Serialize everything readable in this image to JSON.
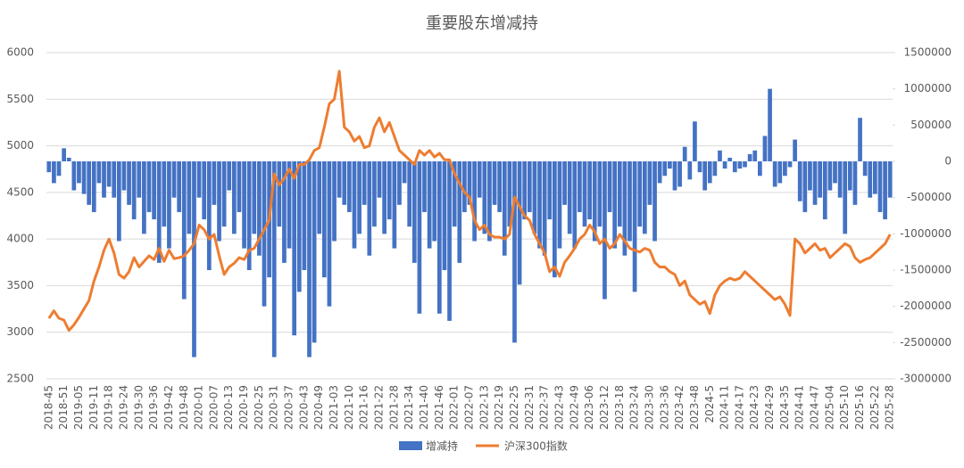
{
  "chart_data": {
    "type": "bar",
    "title": "重要股东增减持",
    "categories": [
      "2018-45",
      null,
      null,
      "2018-51",
      null,
      null,
      "2019-05",
      null,
      null,
      "2019-11",
      null,
      null,
      "2019-18",
      null,
      null,
      "2019-24",
      null,
      null,
      "2019-30",
      null,
      null,
      "2019-36",
      null,
      null,
      "2019-42",
      null,
      null,
      "2019-48",
      null,
      null,
      "2020-01",
      null,
      null,
      "2020-07",
      null,
      null,
      "2020-13",
      null,
      null,
      "2020-19",
      null,
      null,
      "2020-25",
      null,
      null,
      "2020-31",
      null,
      null,
      "2020-37",
      null,
      null,
      "2020-43",
      null,
      null,
      "2020-49",
      null,
      null,
      "2021-03",
      null,
      null,
      "2021-10",
      null,
      null,
      "2021-16",
      null,
      null,
      "2021-22",
      null,
      null,
      "2021-28",
      null,
      null,
      "2021-34",
      null,
      null,
      "2021-40",
      null,
      null,
      "2021-46",
      null,
      null,
      "2022-01",
      null,
      null,
      "2022-07",
      null,
      null,
      "2022-13",
      null,
      null,
      "2022-19",
      null,
      null,
      "2022-25",
      null,
      null,
      "2022-31",
      null,
      null,
      "2022-37",
      null,
      null,
      "2022-43",
      null,
      null,
      "2022-49",
      null,
      null,
      "2023-06",
      null,
      null,
      "2023-12",
      null,
      null,
      "2023-18",
      null,
      null,
      "2023-24",
      null,
      null,
      "2023-30",
      null,
      null,
      "2023-36",
      null,
      null,
      "2023-42",
      null,
      null,
      "2023-48",
      null,
      null,
      "2024-5",
      null,
      null,
      "2024-11",
      null,
      null,
      "2024-17",
      null,
      null,
      "2024-23",
      null,
      null,
      "2024-29",
      null,
      null,
      "2024-35",
      null,
      null,
      "2024-41",
      null,
      null,
      "2024-47",
      null,
      null,
      "2025-04",
      null,
      null,
      "2025-10",
      null,
      null,
      "2025-16",
      null,
      null,
      "2025-22",
      null,
      null,
      "2025-28"
    ],
    "series": [
      {
        "name": "增减持",
        "type": "bar",
        "axis": "y2",
        "color": "#4472c4",
        "values": [
          -150000,
          -300000,
          -200000,
          180000,
          50000,
          -400000,
          -300000,
          -450000,
          -600000,
          -700000,
          -300000,
          -500000,
          -350000,
          -500000,
          -1100000,
          -400000,
          -600000,
          -800000,
          -500000,
          -1000000,
          -700000,
          -800000,
          -1400000,
          -900000,
          -1200000,
          -500000,
          -700000,
          -1900000,
          -1000000,
          -2700000,
          -500000,
          -800000,
          -1500000,
          -600000,
          -1100000,
          -900000,
          -400000,
          -1000000,
          -700000,
          -1200000,
          -1500000,
          -1000000,
          -1300000,
          -2000000,
          -1600000,
          -2700000,
          -900000,
          -1400000,
          -1200000,
          -2400000,
          -1800000,
          -1500000,
          -2700000,
          -2500000,
          -1000000,
          -1600000,
          -2000000,
          -1100000,
          -500000,
          -600000,
          -700000,
          -1200000,
          -1000000,
          -600000,
          -1300000,
          -900000,
          -500000,
          -1000000,
          -800000,
          -1200000,
          -600000,
          -300000,
          -900000,
          -1400000,
          -2100000,
          -700000,
          -1200000,
          -1100000,
          -2100000,
          -1500000,
          -2200000,
          -900000,
          -1400000,
          -700000,
          -600000,
          -1100000,
          -500000,
          -1000000,
          -1100000,
          -600000,
          -700000,
          -1300000,
          -900000,
          -2500000,
          -1700000,
          -800000,
          -700000,
          -1000000,
          -1200000,
          -1300000,
          -800000,
          -1600000,
          -1200000,
          -600000,
          -1000000,
          -1200000,
          -700000,
          -900000,
          -800000,
          -1100000,
          -900000,
          -1900000,
          -700000,
          -1200000,
          -900000,
          -1300000,
          -1100000,
          -1800000,
          -900000,
          -1000000,
          -600000,
          -1100000,
          -300000,
          -200000,
          -100000,
          -400000,
          -350000,
          200000,
          -250000,
          550000,
          -150000,
          -400000,
          -300000,
          -200000,
          150000,
          -100000,
          50000,
          -150000,
          -100000,
          -80000,
          100000,
          150000,
          -200000,
          350000,
          1000000,
          -350000,
          -300000,
          -200000,
          -80000,
          300000,
          -550000,
          -700000,
          -400000,
          -600000,
          -500000,
          -800000,
          -400000,
          -300000,
          -500000,
          -1000000,
          -400000,
          -600000,
          600000,
          -200000,
          -500000,
          -450000,
          -700000,
          -800000,
          -500000
        ]
      },
      {
        "name": "沪深300指数",
        "type": "line",
        "axis": "y",
        "color": "#ed7d31",
        "values": [
          3150,
          3230,
          3150,
          3130,
          3020,
          3080,
          3160,
          3250,
          3340,
          3550,
          3700,
          3880,
          4000,
          3850,
          3620,
          3580,
          3650,
          3800,
          3700,
          3760,
          3820,
          3780,
          3900,
          3760,
          3880,
          3790,
          3800,
          3820,
          3880,
          3950,
          4150,
          4100,
          4000,
          4050,
          3820,
          3620,
          3700,
          3740,
          3800,
          3780,
          3880,
          3900,
          4000,
          4100,
          4200,
          4700,
          4580,
          4650,
          4750,
          4650,
          4800,
          4800,
          4850,
          4950,
          4980,
          5200,
          5450,
          5500,
          5800,
          5200,
          5150,
          5050,
          5100,
          4980,
          5000,
          5200,
          5300,
          5150,
          5250,
          5100,
          4950,
          4900,
          4850,
          4800,
          4950,
          4900,
          4950,
          4880,
          4920,
          4850,
          4850,
          4700,
          4600,
          4500,
          4450,
          4200,
          4100,
          4150,
          4050,
          4020,
          4020,
          4000,
          4050,
          4450,
          4350,
          4250,
          4200,
          4050,
          3950,
          3850,
          3650,
          3700,
          3600,
          3750,
          3820,
          3900,
          4000,
          4050,
          4150,
          4080,
          3950,
          4000,
          3900,
          3950,
          4050,
          3980,
          3900,
          3880,
          3860,
          3900,
          3880,
          3750,
          3700,
          3700,
          3650,
          3620,
          3500,
          3550,
          3400,
          3350,
          3300,
          3330,
          3200,
          3400,
          3500,
          3550,
          3580,
          3560,
          3580,
          3650,
          3600,
          3550,
          3500,
          3450,
          3400,
          3350,
          3380,
          3300,
          3180,
          4000,
          3950,
          3850,
          3900,
          3950,
          3880,
          3900,
          3800,
          3850,
          3900,
          3950,
          3920,
          3800,
          3750,
          3780,
          3800,
          3850,
          3900,
          3950,
          4050
        ]
      }
    ],
    "ylim": [
      2500,
      6000
    ],
    "yticks": [
      2500,
      3000,
      3500,
      4000,
      4500,
      5000,
      5500,
      6000
    ],
    "y2lim": [
      -3000000,
      1500000
    ],
    "y2ticks": [
      -3000000,
      -2500000,
      -2000000,
      -1500000,
      -1000000,
      -500000,
      0,
      500000,
      1000000,
      1500000
    ],
    "grid": true,
    "legend": "bottom"
  }
}
